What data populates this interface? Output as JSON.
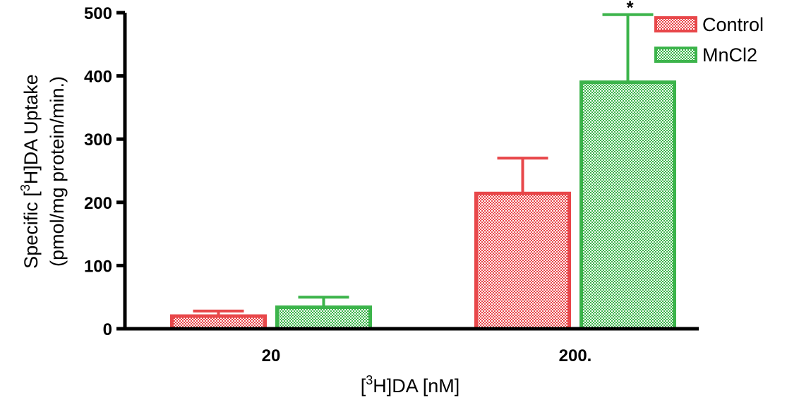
{
  "chart_data": {
    "type": "bar",
    "categories": [
      "20",
      "200."
    ],
    "series": [
      {
        "name": "Control",
        "color": "#e8474a",
        "values": [
          20,
          214
        ],
        "errors": [
          8,
          56
        ]
      },
      {
        "name": "MnCl2",
        "color": "#3cb44b",
        "values": [
          34,
          390
        ],
        "errors": [
          16,
          107
        ]
      }
    ],
    "ylim": [
      0,
      500
    ],
    "yticks": [
      0,
      100,
      200,
      300,
      400,
      500
    ],
    "ylabel_prefix": "Specific [",
    "ylabel_sup": "3",
    "ylabel_suffix": "H]DA Uptake",
    "ylabel_line2": "(pmol/mg protein/min.)",
    "xlabel_prefix": "[",
    "xlabel_sup": "3",
    "xlabel_suffix": "H]DA [nM]",
    "annotations": [
      {
        "category": 1,
        "series": 1,
        "text": "*"
      }
    ],
    "legend": "top-right",
    "grid": false,
    "pattern": "checkered"
  }
}
